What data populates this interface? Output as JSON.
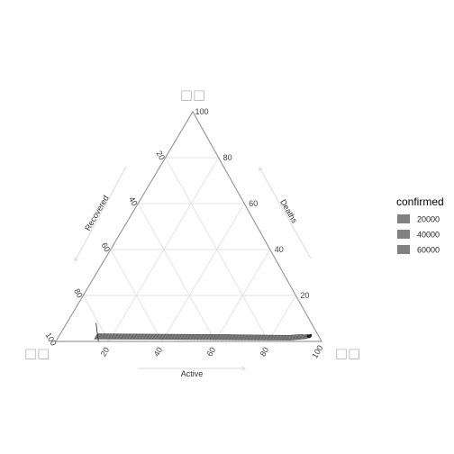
{
  "chart_data": {
    "type": "ternary-area",
    "axes": {
      "bottom": {
        "label": "Active",
        "ticks": [
          20,
          40,
          60,
          80,
          100
        ]
      },
      "right": {
        "label": "Deaths",
        "ticks": [
          20,
          40,
          60,
          80,
          100
        ]
      },
      "left": {
        "label": "Recovered",
        "ticks": [
          20,
          40,
          60,
          80,
          100
        ]
      }
    },
    "vertex_labels": {
      "top": "□□",
      "left": "□□",
      "right": "□□"
    },
    "grid": true,
    "legend": {
      "title": "confirmed",
      "placement": "right",
      "entries": [
        {
          "label": "20000",
          "color": "#808080"
        },
        {
          "label": "40000",
          "color": "#808080"
        },
        {
          "label": "60000",
          "color": "#808080"
        }
      ]
    },
    "band": {
      "color": "#6e6e6e",
      "upper": [
        {
          "active": 14,
          "deaths": 3.3
        },
        {
          "active": 40,
          "deaths": 3.1
        },
        {
          "active": 65,
          "deaths": 2.9
        },
        {
          "active": 86,
          "deaths": 2.6
        },
        {
          "active": 91,
          "deaths": 3.0
        },
        {
          "active": 92,
          "deaths": 2.8
        },
        {
          "active": 93.3,
          "deaths": 3.0
        },
        {
          "active": 94.5,
          "deaths": 2.4
        }
      ],
      "lower": [
        {
          "active": 94.6,
          "deaths": 1.8
        },
        {
          "active": 93.5,
          "deaths": 1.2
        },
        {
          "active": 88,
          "deaths": 0.6
        },
        {
          "active": 60,
          "deaths": 0.8
        },
        {
          "active": 35,
          "deaths": 1.0
        },
        {
          "active": 14,
          "deaths": 1.1
        }
      ],
      "outline": [
        {
          "active": 11,
          "deaths": 8
        },
        {
          "active": 16,
          "deaths": 0
        }
      ]
    }
  }
}
